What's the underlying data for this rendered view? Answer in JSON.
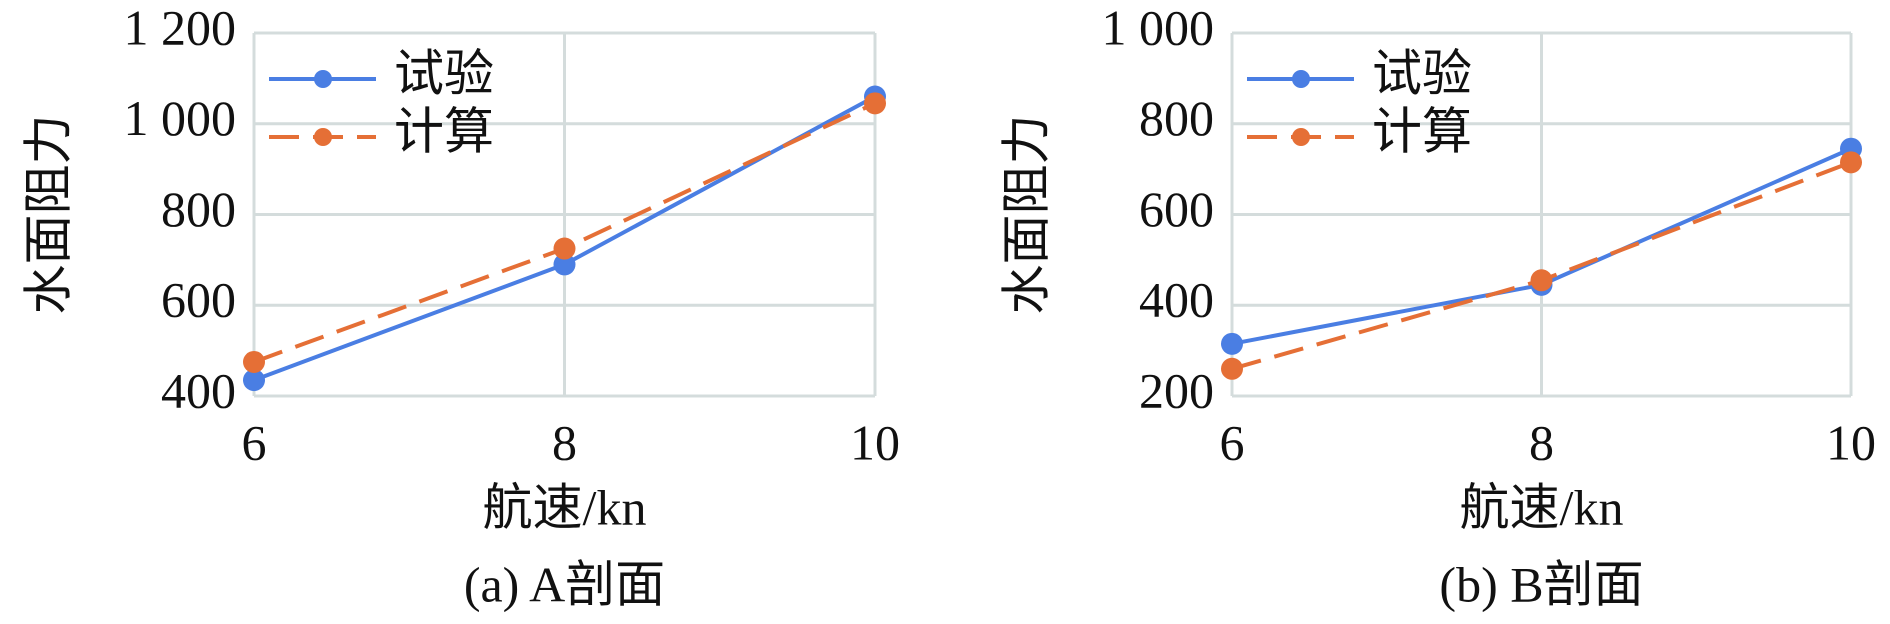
{
  "chart_data": [
    {
      "type": "line",
      "caption": "(a) A剖面",
      "xlabel": "航速/kn",
      "ylabel": "水面阻力",
      "x": [
        6,
        8,
        10
      ],
      "xlim": [
        6,
        10
      ],
      "xticks": [
        6,
        8,
        10
      ],
      "ylim": [
        400,
        1200
      ],
      "yticks": [
        400,
        600,
        800,
        {
          "value": 1000,
          "label": "1 000"
        },
        {
          "value": 1200,
          "label": "1 200"
        }
      ],
      "grid": true,
      "legend": "upper left",
      "series": [
        {
          "name": "试验",
          "color": "#4a7ee3",
          "dash": false,
          "values": [
            435,
            690,
            1060
          ]
        },
        {
          "name": "计算",
          "color": "#e56f36",
          "dash": true,
          "values": [
            475,
            725,
            1045
          ]
        }
      ]
    },
    {
      "type": "line",
      "caption": "(b) B剖面",
      "xlabel": "航速/kn",
      "ylabel": "水面阻力",
      "x": [
        6,
        8,
        10
      ],
      "xlim": [
        6,
        10
      ],
      "xticks": [
        6,
        8,
        10
      ],
      "ylim": [
        200,
        1000
      ],
      "yticks": [
        200,
        400,
        600,
        800,
        {
          "value": 1000,
          "label": "1 000"
        }
      ],
      "grid": true,
      "legend": "upper left",
      "series": [
        {
          "name": "试验",
          "color": "#4a7ee3",
          "dash": false,
          "values": [
            315,
            445,
            745
          ]
        },
        {
          "name": "计算",
          "color": "#e56f36",
          "dash": true,
          "values": [
            260,
            455,
            715
          ]
        }
      ]
    }
  ]
}
